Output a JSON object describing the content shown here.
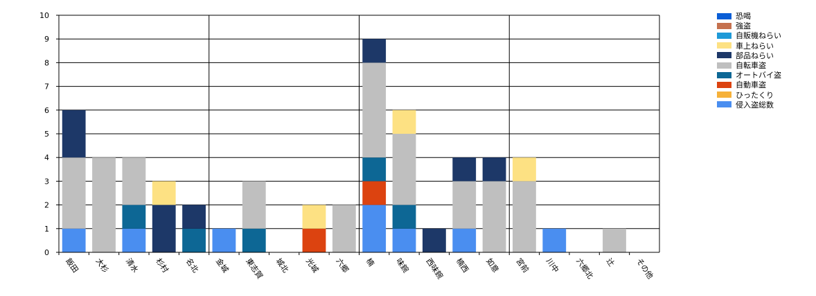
{
  "chart_data": {
    "type": "bar",
    "stacked": true,
    "categories": [
      "飯田",
      "大杉",
      "清水",
      "杉村",
      "名北",
      "金城",
      "東志賀",
      "城北",
      "光城",
      "六郷",
      "楠",
      "味鋺",
      "西味鋺",
      "楠西",
      "如意",
      "宮前",
      "川中",
      "六郷北",
      "辻",
      "その他"
    ],
    "ylim": [
      0,
      10
    ],
    "yticks": [
      0,
      1,
      2,
      3,
      4,
      5,
      6,
      7,
      8,
      9,
      10
    ],
    "grid": true,
    "legend_position": "top-right",
    "series": [
      {
        "name": "侵入盗総数",
        "color": "#4a8ef0",
        "values": [
          1,
          0,
          1,
          0,
          0,
          1,
          0,
          0,
          0,
          0,
          2,
          1,
          0,
          1,
          0,
          0,
          1,
          0,
          0,
          0
        ]
      },
      {
        "name": "ひったくり",
        "color": "#f6b13a",
        "values": [
          0,
          0,
          0,
          0,
          0,
          0,
          0,
          0,
          0,
          0,
          0,
          0,
          0,
          0,
          0,
          0,
          0,
          0,
          0,
          0
        ]
      },
      {
        "name": "自動車盗",
        "color": "#dc4310",
        "values": [
          0,
          0,
          0,
          0,
          0,
          0,
          0,
          0,
          1,
          0,
          1,
          0,
          0,
          0,
          0,
          0,
          0,
          0,
          0,
          0
        ]
      },
      {
        "name": "オートバイ盗",
        "color": "#0d6795",
        "values": [
          0,
          0,
          1,
          0,
          1,
          0,
          1,
          0,
          0,
          0,
          1,
          1,
          0,
          0,
          0,
          0,
          0,
          0,
          0,
          0
        ]
      },
      {
        "name": "自転車盗",
        "color": "#bfbfbf",
        "values": [
          3,
          4,
          2,
          0,
          0,
          0,
          2,
          0,
          0,
          2,
          4,
          3,
          0,
          2,
          3,
          3,
          0,
          0,
          1,
          0
        ]
      },
      {
        "name": "部品ねらい",
        "color": "#1d3868",
        "values": [
          2,
          0,
          0,
          2,
          1,
          0,
          0,
          0,
          0,
          0,
          1,
          0,
          1,
          1,
          1,
          0,
          0,
          0,
          0,
          0
        ]
      },
      {
        "name": "車上ねらい",
        "color": "#fde183",
        "values": [
          0,
          0,
          0,
          1,
          0,
          0,
          0,
          0,
          1,
          0,
          0,
          1,
          0,
          0,
          0,
          1,
          0,
          0,
          0,
          0
        ]
      },
      {
        "name": "自販機ねらい",
        "color": "#1f9ad8",
        "values": [
          0,
          0,
          0,
          0,
          0,
          0,
          0,
          0,
          0,
          0,
          0,
          0,
          0,
          0,
          0,
          0,
          0,
          0,
          0,
          0
        ]
      },
      {
        "name": "強盗",
        "color": "#c5714f",
        "values": [
          0,
          0,
          0,
          0,
          0,
          0,
          0,
          0,
          0,
          0,
          0,
          0,
          0,
          0,
          0,
          0,
          0,
          0,
          0,
          0
        ]
      },
      {
        "name": "恐喝",
        "color": "#0a5ed6",
        "values": [
          0,
          0,
          0,
          0,
          0,
          0,
          0,
          0,
          0,
          0,
          0,
          0,
          0,
          0,
          0,
          0,
          0,
          0,
          0,
          0
        ]
      }
    ],
    "legend_order": [
      "恐喝",
      "強盗",
      "自販機ねらい",
      "車上ねらい",
      "部品ねらい",
      "自転車盗",
      "オートバイ盗",
      "自動車盗",
      "ひったくり",
      "侵入盗総数"
    ]
  }
}
